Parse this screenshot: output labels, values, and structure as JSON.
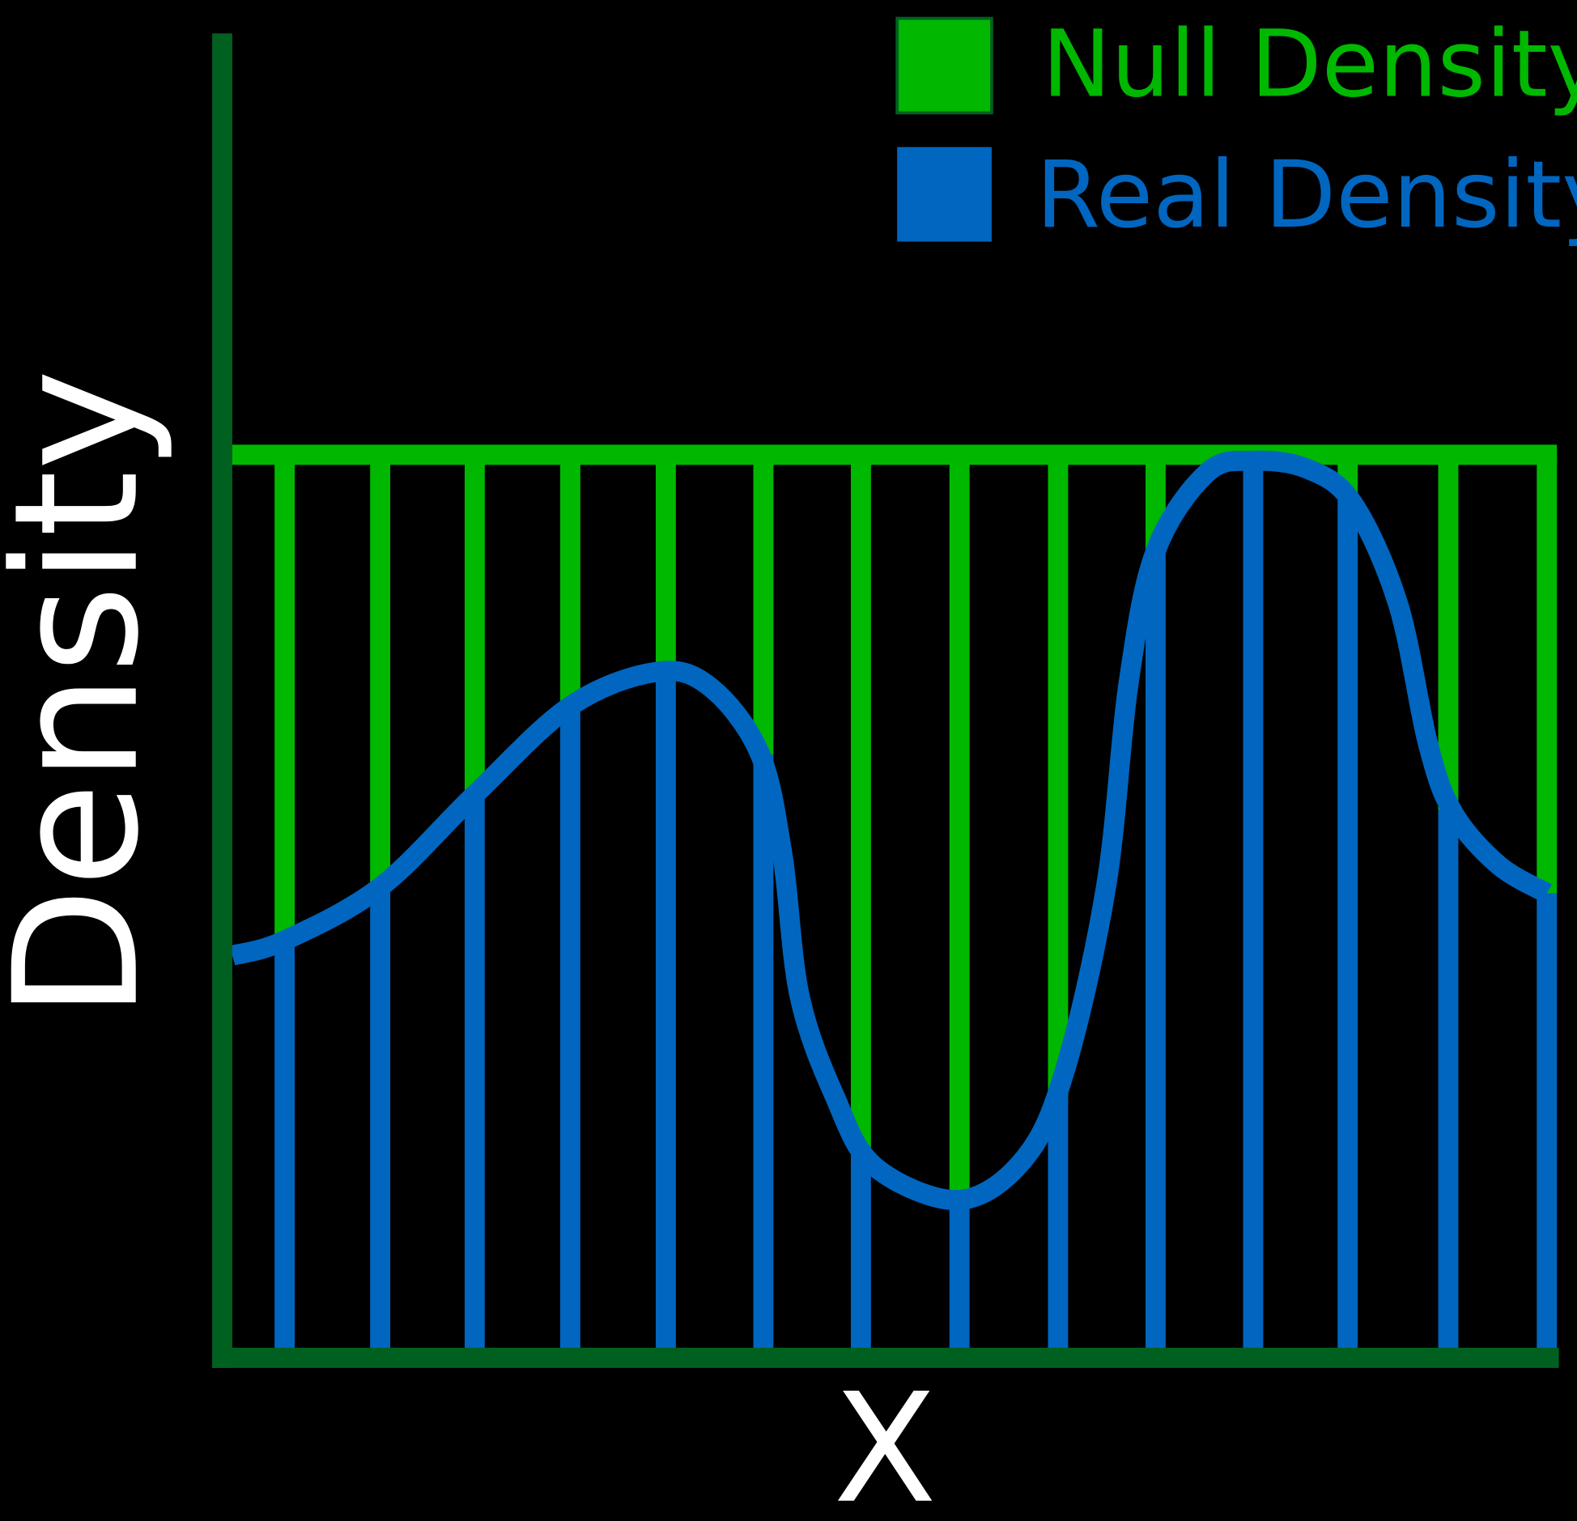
{
  "legend": {
    "items": [
      {
        "label": "Null Density"
      },
      {
        "label": "Real Density"
      }
    ]
  },
  "axes": {
    "y_label": "Density",
    "x_label": "X"
  }
}
